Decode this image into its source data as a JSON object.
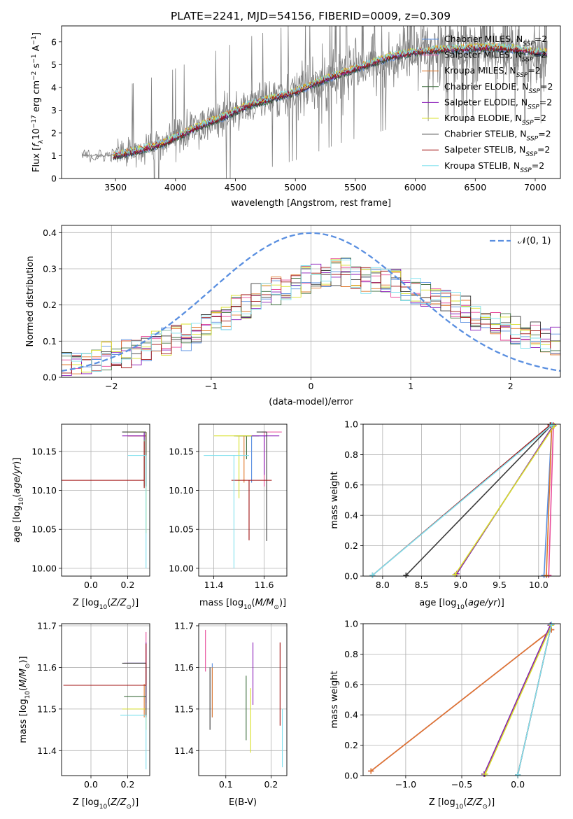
{
  "figure_title": "PLATE=2241, MJD=54156, FIBERID=0009, z=0.309",
  "colors": {
    "chabrier_miles": "#5a8fe0",
    "salpeter_miles": "#e84a9a",
    "kroupa_miles": "#e0782c",
    "chabrier_elodie": "#3f6f3f",
    "salpeter_elodie": "#8a1ab8",
    "kroupa_elodie": "#d8e02a",
    "chabrier_stelib": "#3a3a3a",
    "salpeter_stelib": "#a01010",
    "kroupa_stelib": "#7fe0ee",
    "data": "#808080",
    "normal": "#5a8fe0"
  },
  "chart_data": [
    {
      "id": "spectrum",
      "type": "line",
      "xlabel": "wavelength [Angstrom, rest frame]",
      "ylabel": "Flux [f_λ 10^-17 erg cm^-2 s^-1 A^-1]",
      "xlim": [
        3050,
        7210
      ],
      "ylim": [
        0,
        6.7
      ],
      "xticks": [
        3500,
        4000,
        4500,
        5000,
        5500,
        6000,
        6500,
        7000
      ],
      "yticks": [
        0,
        1,
        2,
        3,
        4,
        5,
        6
      ],
      "grid": false,
      "legend_position": "top-right",
      "legend": [
        {
          "base": "Chabrier MILES, N",
          "sub": "SSP",
          "tail": "=2",
          "color_key": "chabrier_miles"
        },
        {
          "base": "Salpeter MILES, N",
          "sub": "SSP",
          "tail": "=2",
          "color_key": "salpeter_miles"
        },
        {
          "base": "Kroupa MILES, N",
          "sub": "SSP",
          "tail": "=2",
          "color_key": "kroupa_miles"
        },
        {
          "base": "Chabrier ELODIE, N",
          "sub": "SSP",
          "tail": "=2",
          "color_key": "chabrier_elodie"
        },
        {
          "base": "Salpeter ELODIE, N",
          "sub": "SSP",
          "tail": "=2",
          "color_key": "salpeter_elodie"
        },
        {
          "base": "Kroupa ELODIE, N",
          "sub": "SSP",
          "tail": "=2",
          "color_key": "kroupa_elodie"
        },
        {
          "base": "Chabrier STELIB, N",
          "sub": "SSP",
          "tail": "=2",
          "color_key": "chabrier_stelib"
        },
        {
          "base": "Salpeter STELIB, N",
          "sub": "SSP",
          "tail": "=2",
          "color_key": "salpeter_stelib"
        },
        {
          "base": "Kroupa STELIB, N",
          "sub": "SSP",
          "tail": "=2",
          "color_key": "kroupa_stelib"
        }
      ],
      "model_trend": [
        [
          3500,
          1.0
        ],
        [
          3700,
          1.25
        ],
        [
          3900,
          1.55
        ],
        [
          4000,
          1.8
        ],
        [
          4200,
          2.3
        ],
        [
          4400,
          2.7
        ],
        [
          4600,
          3.2
        ],
        [
          4800,
          3.5
        ],
        [
          5000,
          3.8
        ],
        [
          5200,
          4.25
        ],
        [
          5400,
          4.65
        ],
        [
          5600,
          5.0
        ],
        [
          5800,
          5.35
        ],
        [
          6000,
          5.55
        ],
        [
          6200,
          5.65
        ],
        [
          6400,
          5.7
        ],
        [
          6600,
          5.75
        ],
        [
          6800,
          5.7
        ],
        [
          7000,
          5.55
        ],
        [
          7100,
          5.5
        ]
      ],
      "data_trend": [
        [
          3200,
          1.0
        ],
        [
          3400,
          1.0
        ],
        [
          3600,
          1.1
        ],
        [
          3900,
          1.6
        ],
        [
          4200,
          2.3
        ],
        [
          4600,
          3.2
        ],
        [
          5000,
          3.8
        ],
        [
          5400,
          4.6
        ],
        [
          6000,
          5.5
        ],
        [
          6600,
          5.6
        ],
        [
          7100,
          5.4
        ]
      ]
    },
    {
      "id": "residuals",
      "type": "bar",
      "xlabel": "(data-model)/error",
      "ylabel": "Normed distribution",
      "xlim": [
        -2.5,
        2.5
      ],
      "ylim": [
        0,
        0.42
      ],
      "xticks": [
        -2,
        -1,
        0,
        1,
        2
      ],
      "yticks": [
        0.0,
        0.1,
        0.2,
        0.3,
        0.4
      ],
      "grid": true,
      "legend_position": "top-right",
      "legend_label": "N(0, 1)",
      "bin_width": 0.1,
      "base_hist": [
        0.04,
        0.035,
        0.04,
        0.05,
        0.06,
        0.06,
        0.065,
        0.07,
        0.08,
        0.09,
        0.1,
        0.11,
        0.11,
        0.12,
        0.14,
        0.15,
        0.17,
        0.19,
        0.2,
        0.22,
        0.23,
        0.24,
        0.25,
        0.26,
        0.27,
        0.28,
        0.285,
        0.29,
        0.29,
        0.28,
        0.27,
        0.27,
        0.26,
        0.26,
        0.25,
        0.24,
        0.23,
        0.22,
        0.21,
        0.2,
        0.19,
        0.17,
        0.16,
        0.15,
        0.14,
        0.13,
        0.12,
        0.12,
        0.11,
        0.1
      ]
    },
    {
      "id": "age_vs_Z",
      "type": "scatter",
      "xlabel": "Z [log10(Z/Z⊙)]",
      "ylabel": "age [log10(age/yr)]",
      "xlim": [
        -0.16,
        0.32
      ],
      "ylim": [
        9.99,
        10.185
      ],
      "xticks": [
        0.0,
        0.2
      ],
      "yticks": [
        10.0,
        10.05,
        10.1,
        10.15
      ],
      "grid": true,
      "points": [
        {
          "x": 0.3,
          "y": 10.17,
          "xerr": [
            0.1,
            0.0
          ],
          "yerr": [
            0.065,
            0.005
          ],
          "color_key": "chabrier_miles"
        },
        {
          "x": 0.3,
          "y": 10.17,
          "xerr": [
            0.1,
            0.0
          ],
          "yerr": [
            0.005,
            0.005
          ],
          "color_key": "salpeter_miles"
        },
        {
          "x": 0.3,
          "y": 10.17,
          "xerr": [
            0.1,
            0.0
          ],
          "yerr": [
            0.005,
            0.005
          ],
          "color_key": "kroupa_miles"
        },
        {
          "x": 0.29,
          "y": 10.175,
          "xerr": [
            0.12,
            0.0
          ],
          "yerr": [
            0.07,
            0.0
          ],
          "color_key": "chabrier_elodie"
        },
        {
          "x": 0.29,
          "y": 10.17,
          "xerr": [
            0.12,
            0.0
          ],
          "yerr": [
            0.005,
            0.005
          ],
          "color_key": "salpeter_elodie"
        },
        {
          "x": 0.3,
          "y": 10.175,
          "xerr": [
            0.1,
            0.0
          ],
          "yerr": [
            0.13,
            0.0
          ],
          "color_key": "kroupa_elodie"
        },
        {
          "x": 0.3,
          "y": 10.175,
          "xerr": [
            0.13,
            0.0
          ],
          "yerr": [
            0.07,
            0.0
          ],
          "color_key": "chabrier_stelib"
        },
        {
          "x": 0.29,
          "y": 10.113,
          "xerr": [
            0.45,
            0.0
          ],
          "yerr": [
            0.01,
            0.05
          ],
          "color_key": "salpeter_stelib"
        },
        {
          "x": 0.3,
          "y": 10.145,
          "xerr": [
            0.1,
            0.0
          ],
          "yerr": [
            0.145,
            0.0
          ],
          "color_key": "kroupa_stelib"
        }
      ]
    },
    {
      "id": "age_vs_mass",
      "type": "scatter",
      "xlabel": "mass [log10(M/M⊙)]",
      "ylabel": "",
      "xlim": [
        11.34,
        11.69
      ],
      "ylim": [
        9.99,
        10.185
      ],
      "xticks": [
        11.4,
        11.6
      ],
      "yticks": [
        10.0,
        10.05,
        10.1,
        10.15
      ],
      "grid": true,
      "points": [
        {
          "x": 11.55,
          "y": 10.17,
          "xerr": [
            0.05,
            0.06
          ],
          "yerr": [
            0.06,
            0.0
          ],
          "color_key": "chabrier_miles"
        },
        {
          "x": 11.6,
          "y": 10.175,
          "xerr": [
            0.01,
            0.07
          ],
          "yerr": [
            0.07,
            0.0
          ],
          "color_key": "salpeter_miles"
        },
        {
          "x": 11.52,
          "y": 10.17,
          "xerr": [
            0.03,
            0.03
          ],
          "yerr": [
            0.06,
            0.0
          ],
          "color_key": "kroupa_miles"
        },
        {
          "x": 11.53,
          "y": 10.17,
          "xerr": [
            0.05,
            0.05
          ],
          "yerr": [
            0.03,
            0.0
          ],
          "color_key": "chabrier_elodie"
        },
        {
          "x": 11.6,
          "y": 10.17,
          "xerr": [
            0.05,
            0.06
          ],
          "yerr": [
            0.05,
            0.0
          ],
          "color_key": "salpeter_elodie"
        },
        {
          "x": 11.5,
          "y": 10.17,
          "xerr": [
            0.1,
            0.05
          ],
          "yerr": [
            0.08,
            0.0
          ],
          "color_key": "kroupa_elodie"
        },
        {
          "x": 11.61,
          "y": 10.175,
          "xerr": [
            0.04,
            0.0
          ],
          "yerr": [
            0.14,
            0.0
          ],
          "color_key": "chabrier_stelib"
        },
        {
          "x": 11.54,
          "y": 10.113,
          "xerr": [
            0.07,
            0.09
          ],
          "yerr": [
            0.077,
            0.0
          ],
          "color_key": "salpeter_stelib"
        },
        {
          "x": 11.48,
          "y": 10.145,
          "xerr": [
            0.12,
            0.06
          ],
          "yerr": [
            0.145,
            0.0
          ],
          "color_key": "kroupa_stelib"
        }
      ]
    },
    {
      "id": "age_weights",
      "type": "line",
      "xlabel": "age [log10(age/yr)]",
      "ylabel": "mass weight",
      "xlim": [
        7.75,
        10.28
      ],
      "ylim": [
        0,
        1.0
      ],
      "xticks": [
        8.0,
        8.5,
        9.0,
        9.5,
        10.0
      ],
      "yticks": [
        0.0,
        0.2,
        0.4,
        0.6,
        0.8,
        1.0
      ],
      "grid": true,
      "series": [
        {
          "color_key": "chabrier_miles",
          "x": [
            10.07,
            10.17
          ],
          "y": [
            0.005,
            0.995
          ]
        },
        {
          "color_key": "salpeter_miles",
          "x": [
            10.13,
            10.19
          ],
          "y": [
            0.005,
            0.995
          ]
        },
        {
          "color_key": "kroupa_miles",
          "x": [
            10.1,
            10.17
          ],
          "y": [
            0.005,
            0.995
          ]
        },
        {
          "color_key": "chabrier_elodie",
          "x": [
            8.95,
            10.18
          ],
          "y": [
            0.015,
            0.985
          ]
        },
        {
          "color_key": "salpeter_elodie",
          "x": [
            8.95,
            10.18
          ],
          "y": [
            0.015,
            0.985
          ]
        },
        {
          "color_key": "kroupa_elodie",
          "x": [
            8.93,
            10.2
          ],
          "y": [
            0.01,
            0.99
          ]
        },
        {
          "color_key": "chabrier_stelib",
          "x": [
            8.3,
            10.17
          ],
          "y": [
            0.005,
            0.995
          ]
        },
        {
          "color_key": "salpeter_stelib",
          "x": [
            7.87,
            10.15
          ],
          "y": [
            0.005,
            0.995
          ]
        },
        {
          "color_key": "kroupa_stelib",
          "x": [
            7.87,
            10.17
          ],
          "y": [
            0.005,
            0.995
          ]
        }
      ]
    },
    {
      "id": "mass_vs_Z",
      "type": "scatter",
      "xlabel": "Z [log10(Z/Z⊙)]",
      "ylabel": "mass [log10(M/M⊙)]",
      "xlim": [
        -0.16,
        0.32
      ],
      "ylim": [
        11.34,
        11.705
      ],
      "xticks": [
        0.0,
        0.2
      ],
      "yticks": [
        11.4,
        11.5,
        11.6,
        11.7
      ],
      "grid": true,
      "points": [
        {
          "x": 0.3,
          "y": 11.61,
          "xerr": [
            0.1,
            0.0
          ],
          "yerr": [
            0.07,
            0.0
          ],
          "color_key": "chabrier_miles"
        },
        {
          "x": 0.3,
          "y": 11.655,
          "xerr": [
            0.0,
            0.0
          ],
          "yerr": [
            0.14,
            0.03
          ],
          "color_key": "salpeter_miles"
        },
        {
          "x": 0.29,
          "y": 11.56,
          "xerr": [
            0.0,
            0.0
          ],
          "yerr": [
            0.08,
            0.0
          ],
          "color_key": "kroupa_miles"
        },
        {
          "x": 0.3,
          "y": 11.53,
          "xerr": [
            0.12,
            0.0
          ],
          "yerr": [
            0.0,
            0.0
          ],
          "color_key": "chabrier_elodie"
        },
        {
          "x": 0.3,
          "y": 11.61,
          "xerr": [
            0.12,
            0.0
          ],
          "yerr": [
            0.13,
            0.05
          ],
          "color_key": "salpeter_elodie"
        },
        {
          "x": 0.3,
          "y": 11.5,
          "xerr": [
            0.13,
            0.0
          ],
          "yerr": [
            0.05,
            0.0
          ],
          "color_key": "kroupa_elodie"
        },
        {
          "x": 0.3,
          "y": 11.61,
          "xerr": [
            0.13,
            0.0
          ],
          "yerr": [
            0.13,
            0.0
          ],
          "color_key": "chabrier_stelib"
        },
        {
          "x": 0.3,
          "y": 11.557,
          "xerr": [
            0.45,
            0.0
          ],
          "yerr": [
            0.0,
            0.1
          ],
          "color_key": "salpeter_stelib"
        },
        {
          "x": 0.3,
          "y": 11.485,
          "xerr": [
            0.14,
            0.0
          ],
          "yerr": [
            0.13,
            0.0
          ],
          "color_key": "kroupa_stelib"
        }
      ]
    },
    {
      "id": "mass_vs_ebv",
      "type": "scatter",
      "xlabel": "E(B-V)",
      "ylabel": "",
      "xlim": [
        0.04,
        0.235
      ],
      "ylim": [
        11.34,
        11.705
      ],
      "xticks": [
        0.1,
        0.2
      ],
      "yticks": [
        11.4,
        11.5,
        11.6,
        11.7
      ],
      "grid": true,
      "points": [
        {
          "x": 0.07,
          "y": 11.48,
          "yerr": [
            0.0,
            0.13
          ],
          "color_key": "chabrier_miles"
        },
        {
          "x": 0.055,
          "y": 11.64,
          "yerr": [
            0.05,
            0.05
          ],
          "color_key": "salpeter_miles"
        },
        {
          "x": 0.07,
          "y": 11.55,
          "yerr": [
            0.07,
            0.05
          ],
          "color_key": "kroupa_miles"
        },
        {
          "x": 0.145,
          "y": 11.5,
          "yerr": [
            0.075,
            0.08
          ],
          "color_key": "chabrier_elodie"
        },
        {
          "x": 0.16,
          "y": 11.57,
          "yerr": [
            0.06,
            0.09
          ],
          "color_key": "salpeter_elodie"
        },
        {
          "x": 0.155,
          "y": 11.47,
          "yerr": [
            0.075,
            0.08
          ],
          "color_key": "kroupa_elodie"
        },
        {
          "x": 0.065,
          "y": 11.53,
          "yerr": [
            0.08,
            0.07
          ],
          "color_key": "chabrier_stelib"
        },
        {
          "x": 0.22,
          "y": 11.56,
          "yerr": [
            0.1,
            0.1
          ],
          "color_key": "salpeter_stelib"
        },
        {
          "x": 0.225,
          "y": 11.43,
          "yerr": [
            0.07,
            0.07
          ],
          "color_key": "kroupa_stelib"
        }
      ]
    },
    {
      "id": "Z_weights",
      "type": "line",
      "xlabel": "Z [log10(Z/Z⊙)]",
      "ylabel": "mass weight",
      "xlim": [
        -1.38,
        0.38
      ],
      "ylim": [
        0,
        1.0
      ],
      "xticks": [
        -1.0,
        -0.5,
        0.0
      ],
      "yticks": [
        0.0,
        0.2,
        0.4,
        0.6,
        0.8,
        1.0
      ],
      "grid": true,
      "series": [
        {
          "color_key": "chabrier_miles",
          "x": [
            -1.31,
            0.3
          ],
          "y": [
            0.03,
            0.96
          ]
        },
        {
          "color_key": "salpeter_miles",
          "x": [
            -1.31,
            0.3
          ],
          "y": [
            0.03,
            0.96
          ]
        },
        {
          "color_key": "kroupa_miles",
          "x": [
            -1.31,
            0.3
          ],
          "y": [
            0.03,
            0.96
          ]
        },
        {
          "color_key": "chabrier_elodie",
          "x": [
            -0.3,
            0.29
          ],
          "y": [
            0.01,
            0.99
          ]
        },
        {
          "color_key": "salpeter_elodie",
          "x": [
            -0.3,
            0.29
          ],
          "y": [
            0.01,
            0.99
          ]
        },
        {
          "color_key": "kroupa_elodie",
          "x": [
            -0.29,
            0.3
          ],
          "y": [
            0.01,
            0.99
          ]
        },
        {
          "color_key": "chabrier_stelib",
          "x": [
            0.0,
            0.3
          ],
          "y": [
            0.005,
            0.995
          ]
        },
        {
          "color_key": "salpeter_stelib",
          "x": [
            0.0,
            0.3
          ],
          "y": [
            0.005,
            0.995
          ]
        },
        {
          "color_key": "kroupa_stelib",
          "x": [
            0.0,
            0.3
          ],
          "y": [
            0.005,
            0.995
          ]
        }
      ]
    }
  ]
}
